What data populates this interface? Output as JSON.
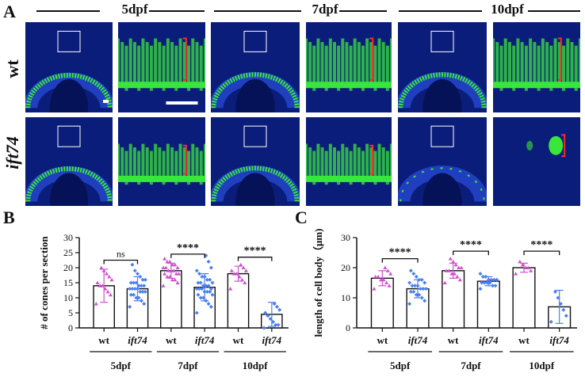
{
  "panel_letters": {
    "a": "A",
    "b": "B",
    "c": "C"
  },
  "ages": [
    "5dpf",
    "7dpf",
    "10dpf"
  ],
  "rows": [
    "wt",
    "ift74"
  ],
  "colors": {
    "wt": "#d14fd1",
    "ift74": "#4a7ff0",
    "retina_bg": "#0b1d7a",
    "cone_green": "#39e63a",
    "bracket": "#ff2a2a"
  },
  "chart_data": [
    {
      "type": "bar",
      "panel": "B",
      "ylabel": "# of cones per section",
      "ylim": [
        0,
        30
      ],
      "yticks": [
        0,
        5,
        10,
        15,
        20,
        25,
        30
      ],
      "categories": [
        "wt",
        "ift74",
        "wt",
        "ift74",
        "wt",
        "ift74"
      ],
      "groups": [
        "5dpf",
        "7dpf",
        "10dpf"
      ],
      "means": [
        14,
        13,
        19,
        13.5,
        18,
        4.5
      ],
      "sd": [
        5.5,
        4,
        2.5,
        4.5,
        2.5,
        4
      ],
      "significance": [
        "ns",
        "****",
        "****"
      ],
      "points": {
        "5dpf_wt": [
          8,
          11,
          12,
          13,
          14,
          14,
          15,
          16,
          17,
          18,
          19,
          20
        ],
        "5dpf_ift74": [
          7,
          8,
          9,
          10,
          10,
          11,
          11,
          12,
          12,
          12,
          13,
          13,
          13,
          13,
          14,
          14,
          14,
          15,
          15,
          15,
          16,
          16,
          17,
          18,
          19,
          21
        ],
        "7dpf_wt": [
          14,
          15,
          16,
          16,
          17,
          17,
          18,
          18,
          18,
          19,
          19,
          19,
          20,
          20,
          20,
          21,
          21,
          22,
          22,
          23
        ],
        "7dpf_ift74": [
          5,
          7,
          8,
          9,
          10,
          10,
          11,
          11,
          12,
          12,
          12,
          13,
          13,
          13,
          13,
          14,
          14,
          14,
          15,
          15,
          15,
          16,
          16,
          17,
          17,
          18,
          19,
          20,
          22,
          24
        ],
        "10dpf_wt": [
          13,
          15,
          16,
          17,
          18,
          18,
          19,
          19,
          20,
          21
        ],
        "10dpf_ift74": [
          0,
          1,
          1,
          2,
          3,
          4,
          5,
          6,
          7,
          8
        ]
      }
    },
    {
      "type": "bar",
      "panel": "C",
      "ylabel": "length of cell body（μm)",
      "ylim": [
        0,
        30
      ],
      "yticks": [
        0,
        10,
        20,
        30
      ],
      "categories": [
        "wt",
        "ift74",
        "wt",
        "ift74",
        "wt",
        "ift74"
      ],
      "groups": [
        "5dpf",
        "7dpf",
        "10dpf"
      ],
      "means": [
        16.5,
        13,
        19,
        15.5,
        20,
        7
      ],
      "sd": [
        2.5,
        3,
        2.5,
        1.5,
        1.5,
        5.5
      ],
      "significance": [
        "****",
        "****",
        "****"
      ],
      "points": {
        "5dpf_wt": [
          13,
          14,
          15,
          16,
          16,
          17,
          17,
          18,
          19,
          20
        ],
        "5dpf_ift74": [
          8,
          9,
          10,
          11,
          11,
          12,
          12,
          13,
          13,
          13,
          14,
          14,
          14,
          15,
          15,
          16,
          16,
          17,
          18,
          19
        ],
        "7dpf_wt": [
          15,
          16,
          17,
          18,
          18,
          19,
          19,
          20,
          20,
          21,
          22,
          23
        ],
        "7dpf_ift74": [
          13,
          14,
          14,
          15,
          15,
          15,
          15,
          16,
          16,
          16,
          16,
          17,
          17,
          18
        ],
        "10dpf_wt": [
          18,
          19,
          20,
          20,
          21,
          22
        ],
        "10dpf_ift74": [
          2,
          4,
          6,
          8,
          10,
          12
        ]
      }
    }
  ]
}
